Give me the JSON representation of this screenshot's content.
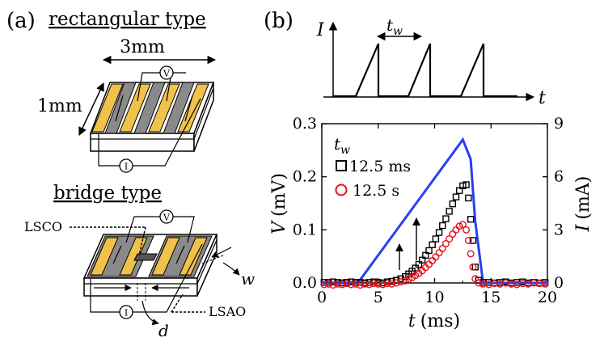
{
  "panel_a": {
    "label": "(a)",
    "rect_title": "rectangular type",
    "dim_length": "3mm",
    "dim_width": "1mm",
    "voltmeter": "V",
    "ammeter": "I",
    "bridge_title": "bridge type",
    "lsco": "LSCO",
    "lsao": "LSAO",
    "w_label": "w",
    "d_label": "d"
  },
  "panel_b_top": {
    "label": "(b)",
    "y_axis": "I",
    "x_axis": "t",
    "tw_main": "t",
    "tw_sub": "w"
  },
  "chart_data": {
    "type": "scatter",
    "xlabel_var": "t",
    "xlabel_unit": "(ms)",
    "ylabel_left_var": "V",
    "ylabel_left_unit": "(mV)",
    "ylabel_right_var": "I",
    "ylabel_right_unit": "(mA)",
    "xlim": [
      0,
      20
    ],
    "ylim_left": [
      0,
      0.3
    ],
    "ylim_right": [
      0,
      9
    ],
    "x_ticks": [
      "0",
      "5",
      "10",
      "15",
      "20"
    ],
    "y_left_ticks": [
      "0.0",
      "0.1",
      "0.2",
      "0.3"
    ],
    "y_right_ticks": [
      "0",
      "3",
      "6",
      "9"
    ],
    "legend_title_main": "t",
    "legend_title_sub": "w",
    "legend_items": [
      "12.5 ms",
      "12.5 s"
    ],
    "current": {
      "x": [
        0,
        3.2,
        12.5,
        13.2,
        13.6,
        14.3,
        20
      ],
      "y": [
        0,
        0,
        8.1,
        7.0,
        3.5,
        0,
        0
      ],
      "color": "#2a3ff0"
    },
    "series": [
      {
        "name": "12.5 ms",
        "marker": "square",
        "color": "#000000",
        "x": [
          0.2,
          0.6,
          1.0,
          1.4,
          1.8,
          2.2,
          2.6,
          3.0,
          3.4,
          3.8,
          4.2,
          4.6,
          5.0,
          5.4,
          5.8,
          6.2,
          6.6,
          7.0,
          7.4,
          7.7,
          8.0,
          8.3,
          8.6,
          8.9,
          9.2,
          9.5,
          9.8,
          10.1,
          10.4,
          10.7,
          11.0,
          11.3,
          11.6,
          11.9,
          12.2,
          12.5,
          12.8,
          13.0,
          13.2,
          13.4,
          13.6,
          13.9,
          14.3,
          14.8,
          15.3,
          15.8,
          16.3,
          16.8,
          17.3,
          17.8,
          18.3,
          18.8,
          19.3,
          19.8
        ],
        "y": [
          0.001,
          0.001,
          0.002,
          0.001,
          0.0,
          0.001,
          0.002,
          0.001,
          0.001,
          0.0,
          0.001,
          0.002,
          0.001,
          0.0,
          0.002,
          0.003,
          0.005,
          0.008,
          0.012,
          0.017,
          0.022,
          0.028,
          0.035,
          0.043,
          0.052,
          0.061,
          0.072,
          0.083,
          0.095,
          0.108,
          0.121,
          0.135,
          0.149,
          0.162,
          0.174,
          0.183,
          0.185,
          0.16,
          0.12,
          0.08,
          0.03,
          0.005,
          0.001,
          0.001,
          0.0,
          0.001,
          0.002,
          0.0,
          0.001,
          0.002,
          0.0,
          0.001,
          0.0,
          0.001
        ]
      },
      {
        "name": "12.5 s",
        "marker": "circle",
        "color": "#e8101a",
        "x": [
          0.2,
          0.6,
          1.0,
          1.4,
          1.8,
          2.2,
          2.6,
          3.0,
          3.4,
          3.8,
          4.2,
          4.6,
          5.0,
          5.4,
          5.8,
          6.2,
          6.6,
          7.0,
          7.4,
          7.7,
          8.0,
          8.3,
          8.6,
          8.9,
          9.2,
          9.5,
          9.8,
          10.1,
          10.4,
          10.7,
          11.0,
          11.3,
          11.6,
          11.9,
          12.2,
          12.5,
          12.8,
          13.0,
          13.2,
          13.4,
          13.6,
          13.9,
          14.3,
          14.8,
          15.3,
          15.8,
          16.3,
          16.8,
          17.3,
          17.8,
          18.3,
          18.8,
          19.3,
          19.8
        ],
        "y": [
          -0.003,
          -0.002,
          -0.004,
          -0.002,
          -0.003,
          -0.001,
          -0.003,
          -0.002,
          -0.004,
          -0.002,
          -0.003,
          -0.001,
          -0.002,
          -0.003,
          -0.001,
          -0.002,
          0.0,
          0.002,
          0.004,
          0.007,
          0.01,
          0.014,
          0.018,
          0.023,
          0.029,
          0.035,
          0.042,
          0.049,
          0.057,
          0.065,
          0.074,
          0.083,
          0.092,
          0.1,
          0.107,
          0.11,
          0.1,
          0.08,
          0.055,
          0.03,
          0.008,
          0.0,
          -0.002,
          -0.003,
          -0.001,
          -0.002,
          0.0,
          -0.002,
          -0.003,
          -0.001,
          -0.002,
          0.0,
          -0.001,
          -0.002
        ]
      }
    ],
    "annotations": [
      "up-arrow",
      "up-arrow"
    ]
  }
}
